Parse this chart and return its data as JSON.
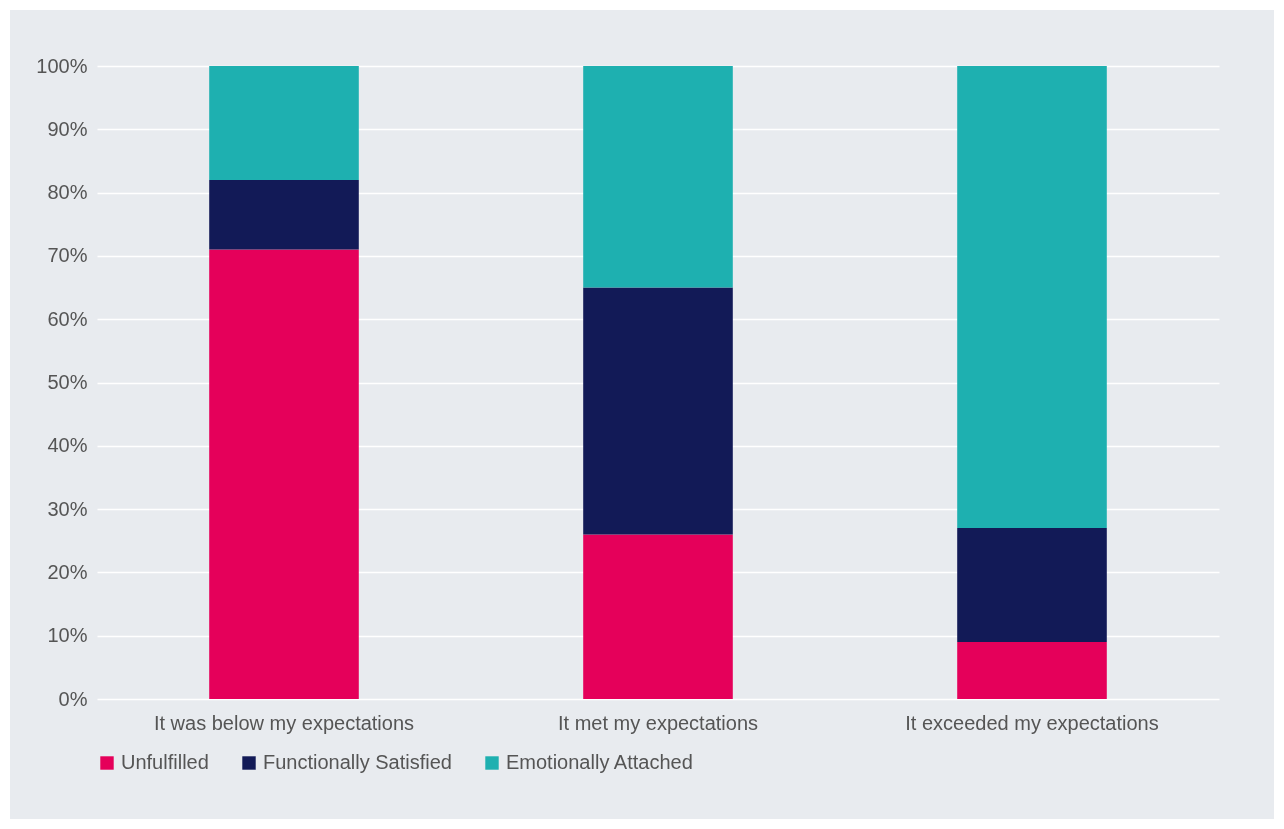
{
  "chart_data": {
    "type": "bar",
    "stacked": true,
    "categories": [
      "It was below my expectations",
      "It met my expectations",
      "It exceeded my expectations"
    ],
    "series": [
      {
        "name": "Unfulfilled",
        "color": "#e5005a",
        "values": [
          71,
          26,
          9
        ]
      },
      {
        "name": "Functionally Satisfied",
        "color": "#121a57",
        "values": [
          11,
          39,
          18
        ]
      },
      {
        "name": "Emotionally Attached",
        "color": "#1eb0b0",
        "values": [
          18,
          35,
          73
        ]
      }
    ],
    "ylim": [
      0,
      100
    ],
    "yticks": [
      {
        "value": 0,
        "label": "0%"
      },
      {
        "value": 10,
        "label": "10%"
      },
      {
        "value": 20,
        "label": "20%"
      },
      {
        "value": 30,
        "label": "30%"
      },
      {
        "value": 40,
        "label": "40%"
      },
      {
        "value": 50,
        "label": "50%"
      },
      {
        "value": 60,
        "label": "60%"
      },
      {
        "value": 70,
        "label": "70%"
      },
      {
        "value": 80,
        "label": "80%"
      },
      {
        "value": 90,
        "label": "90%"
      },
      {
        "value": 100,
        "label": "100%"
      }
    ],
    "grid": "y",
    "legend": "bottom"
  }
}
